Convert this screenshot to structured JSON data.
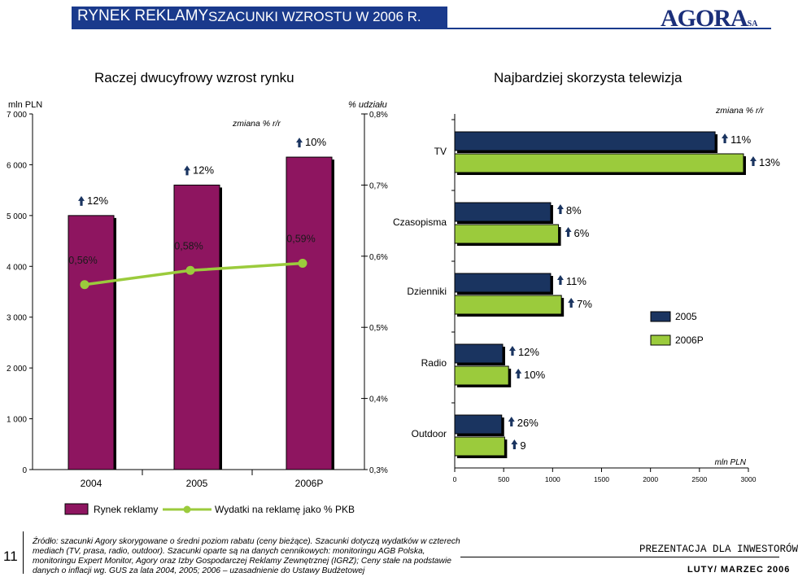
{
  "header": {
    "section": "RYNEK REKLAMY",
    "subtitle": "SZACUNKI WZROSTU W 2006 R.",
    "logo": "AGORA",
    "logo_suffix": "SA"
  },
  "colors": {
    "header_bg": "#1a3a8c",
    "bar_market": "#8e1560",
    "line_share": "#9bcb3c",
    "bar_2005": "#1a3460",
    "bar_2006p": "#9bcb3c",
    "growth_arrow": "#1a3460"
  },
  "chart_data": [
    {
      "type": "bar+line",
      "title": "Raczej dwucyfrowy wzrost rynku",
      "left_axis_unit": "mln PLN",
      "right_axis_unit": "% udziału",
      "change_label": "zmiana % r/r",
      "categories": [
        "2004",
        "2005",
        "2006P"
      ],
      "left_ticks": [
        "0",
        "1 000",
        "2 000",
        "3 000",
        "4 000",
        "5 000",
        "6 000",
        "7 000"
      ],
      "right_ticks": [
        "0,3%",
        "0,4%",
        "0,5%",
        "0,6%",
        "0,7%",
        "0,8%"
      ],
      "ylim_left": [
        0,
        7000
      ],
      "ylim_right": [
        0.3,
        0.8
      ],
      "series": [
        {
          "name": "Rynek reklamy",
          "type": "bar",
          "values": [
            5000,
            5600,
            6150
          ],
          "growth_labels": [
            "12%",
            "12%",
            "10%"
          ]
        },
        {
          "name": "Wydatki na reklamę jako % PKB",
          "type": "line",
          "values": [
            0.56,
            0.58,
            0.59
          ],
          "labels": [
            "0,56%",
            "0,58%",
            "0,59%"
          ]
        }
      ],
      "legend": [
        "Rynek reklamy",
        "Wydatki na reklamę jako % PKB"
      ]
    },
    {
      "type": "bar-horizontal",
      "title": "Najbardziej skorzysta telewizja",
      "change_label": "zmiana % r/r",
      "x_unit": "mln PLN",
      "xlim": [
        0,
        3000
      ],
      "x_ticks": [
        "0",
        "500",
        "1000",
        "1500",
        "2000",
        "2500",
        "3000"
      ],
      "categories": [
        "TV",
        "Czasopisma",
        "Dzienniki",
        "Radio",
        "Outdoor"
      ],
      "series": [
        {
          "name": "2005",
          "values": [
            2660,
            980,
            980,
            490,
            480
          ],
          "growth_labels": [
            "11%",
            "8%",
            "11%",
            "12%",
            "26%"
          ]
        },
        {
          "name": "2006P",
          "values": [
            2950,
            1060,
            1090,
            550,
            510
          ],
          "growth_labels": [
            "13%",
            "6%",
            "7%",
            "10%",
            "9"
          ]
        }
      ],
      "legend": [
        "2005",
        "2006P"
      ]
    }
  ],
  "footer": {
    "lines": [
      "Źródło: szacunki Agory skorygowane o średni poziom rabatu (ceny bieżące). Szacunki dotyczą wydatków w czterech",
      "mediach (TV, prasa, radio, outdoor). Szacunki oparte są na danych cennikowych: monitoringu AGB Polska,",
      "monitoringu Expert Monitor, Agory oraz Izby Gospodarczej Reklamy Zewnętrznej (IGRZ); Ceny stałe na podstawie",
      "danych o inflacji wg. GUS za lata 2004, 2005; 2006 – uzasadnienie do Ustawy Budżetowej"
    ],
    "page_number": "11",
    "presentation": "PREZENTACJA DLA INWESTORÓW",
    "date": "LUTY/ MARZEC 2006"
  }
}
